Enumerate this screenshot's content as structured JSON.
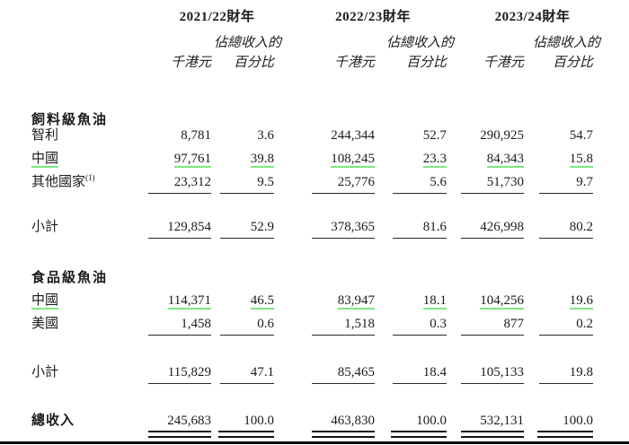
{
  "page": {
    "background": "#ffffff",
    "text_color": "#1b1b1b"
  },
  "table": {
    "highlight_color": "#7fe57f",
    "year_headers": [
      "2021/22財年",
      "2022/23財年",
      "2023/24財年"
    ],
    "sub_share": "佔總收入的",
    "sub_money": "千港元",
    "sub_pct": "百分比",
    "sections": [
      {
        "title": "飼料級魚油",
        "rows": [
          {
            "label": "智利",
            "values": [
              "8,781",
              "3.6",
              "244,344",
              "52.7",
              "290,925",
              "54.7"
            ]
          },
          {
            "label": "中國",
            "highlighted": true,
            "values": [
              "97,761",
              "39.8",
              "108,245",
              "23.3",
              "84,343",
              "15.8"
            ]
          },
          {
            "label": "其他國家",
            "footnote": "(1)",
            "values": [
              "23,312",
              "9.5",
              "25,776",
              "5.6",
              "51,730",
              "9.7"
            ]
          }
        ],
        "subtotal": {
          "label": "小計",
          "values": [
            "129,854",
            "52.9",
            "378,365",
            "81.6",
            "426,998",
            "80.2"
          ]
        }
      },
      {
        "title": "食品級魚油",
        "rows": [
          {
            "label": "中國",
            "highlighted": true,
            "values": [
              "114,371",
              "46.5",
              "83,947",
              "18.1",
              "104,256",
              "19.6"
            ]
          },
          {
            "label": "美國",
            "values": [
              "1,458",
              "0.6",
              "1,518",
              "0.3",
              "877",
              "0.2"
            ]
          }
        ],
        "subtotal": {
          "label": "小計",
          "values": [
            "115,829",
            "47.1",
            "85,465",
            "18.4",
            "105,133",
            "19.8"
          ]
        }
      }
    ],
    "total": {
      "label": "總收入",
      "values": [
        "245,683",
        "100.0",
        "463,830",
        "100.0",
        "532,131",
        "100.0"
      ]
    }
  }
}
